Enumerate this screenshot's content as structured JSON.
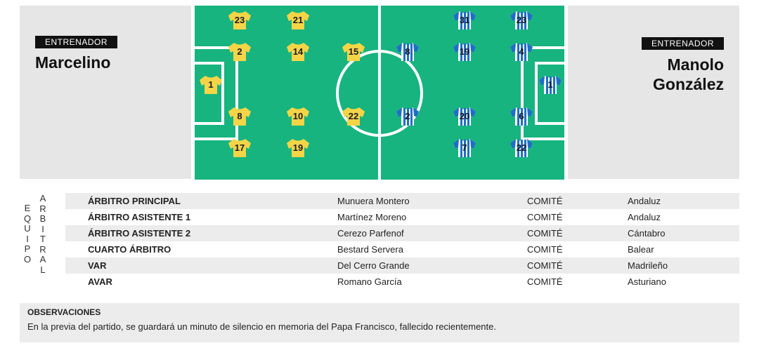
{
  "home": {
    "coach_label": "ENTRENADOR",
    "coach": "Marcelino",
    "kit_color": "#f5d547",
    "players": [
      "23",
      "21",
      "2",
      "14",
      "15",
      "1",
      "8",
      "10",
      "22",
      "17",
      "19"
    ]
  },
  "away": {
    "coach_label": "ENTRENADOR",
    "coach_line1": "Manolo",
    "coach_line2": "González",
    "kit_color": "#1e6fc4",
    "players": [
      "31",
      "23",
      "8",
      "19",
      "4",
      "1",
      "2",
      "20",
      "6",
      "7",
      "22"
    ]
  },
  "pitch_color": "#17b47f",
  "referees": {
    "side_label_1": "EQUIPO",
    "side_label_2": "ARBITRAL",
    "rows": [
      {
        "role": "ÁRBITRO PRINCIPAL",
        "name": "Munuera Montero",
        "committee": "COMITÉ",
        "region": "Andaluz"
      },
      {
        "role": "ÁRBITRO ASISTENTE 1",
        "name": "Martínez Moreno",
        "committee": "COMITÉ",
        "region": "Andaluz"
      },
      {
        "role": "ÁRBITRO ASISTENTE 2",
        "name": "Cerezo Parfenof",
        "committee": "COMITÉ",
        "region": "Cántabro"
      },
      {
        "role": "CUARTO ÁRBITRO",
        "name": "Bestard Servera",
        "committee": "COMITÉ",
        "region": "Balear"
      },
      {
        "role": "VAR",
        "name": "Del Cerro Grande",
        "committee": "COMITÉ",
        "region": "Madrileño"
      },
      {
        "role": "AVAR",
        "name": "Romano García",
        "committee": "COMITÉ",
        "region": "Asturiano"
      }
    ]
  },
  "observations": {
    "title": "OBSERVACIONES",
    "text": "En la previa del partido, se guardará un minuto de silencio en memoria del Papa Francisco, fallecido recientemente."
  }
}
